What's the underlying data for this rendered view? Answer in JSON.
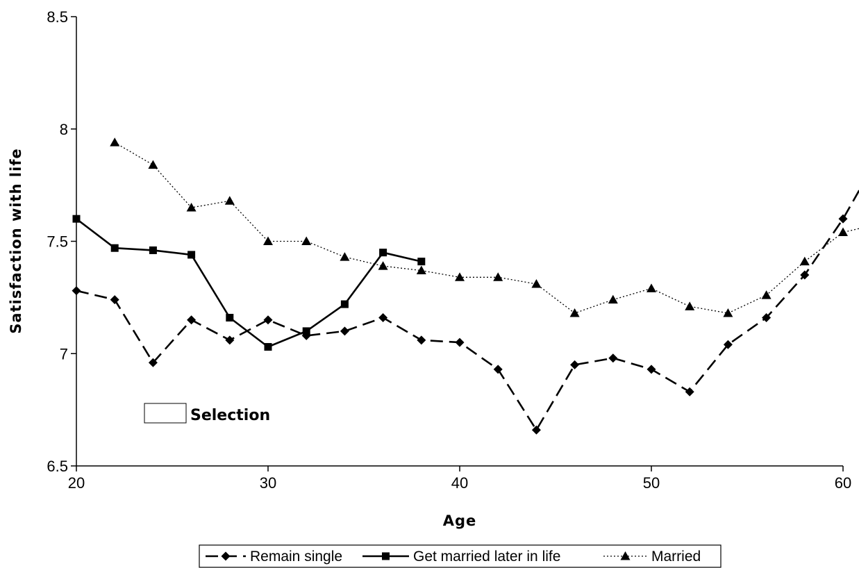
{
  "chart_data": {
    "type": "line",
    "title": "",
    "xlabel": "Age",
    "ylabel": "Satisfaction with life",
    "xlim": [
      20,
      60
    ],
    "ylim": [
      6.5,
      8.5
    ],
    "x_ticks": [
      "20",
      "30",
      "40",
      "50",
      "60"
    ],
    "y_ticks": [
      "6.5",
      "7",
      "7.5",
      "8",
      "8.5"
    ],
    "grid": false,
    "legend_position": "bottom",
    "annotation": "Selection",
    "series": [
      {
        "name": "Remain single",
        "marker": "diamond",
        "line_style": "dashed",
        "points": [
          [
            20,
            7.28
          ],
          [
            22,
            7.24
          ],
          [
            24,
            6.96
          ],
          [
            26,
            7.15
          ],
          [
            28,
            7.06
          ],
          [
            30,
            7.15
          ],
          [
            32,
            7.08
          ],
          [
            34,
            7.1
          ],
          [
            36,
            7.16
          ],
          [
            38,
            7.06
          ],
          [
            40,
            7.05
          ],
          [
            42,
            6.93
          ],
          [
            44,
            6.66
          ],
          [
            46,
            6.95
          ],
          [
            48,
            6.98
          ],
          [
            50,
            6.93
          ],
          [
            52,
            6.83
          ],
          [
            54,
            7.04
          ],
          [
            56,
            7.16
          ],
          [
            58,
            7.35
          ],
          [
            60,
            7.6
          ],
          [
            61,
            7.75
          ]
        ]
      },
      {
        "name": "Get married later in life",
        "marker": "square",
        "line_style": "solid",
        "points": [
          [
            20,
            7.6
          ],
          [
            22,
            7.47
          ],
          [
            24,
            7.46
          ],
          [
            26,
            7.44
          ],
          [
            28,
            7.16
          ],
          [
            30,
            7.03
          ],
          [
            32,
            7.1
          ],
          [
            34,
            7.22
          ],
          [
            36,
            7.45
          ],
          [
            38,
            7.41
          ]
        ]
      },
      {
        "name": "Married",
        "marker": "triangle",
        "line_style": "dotted",
        "points": [
          [
            22,
            7.94
          ],
          [
            24,
            7.84
          ],
          [
            26,
            7.65
          ],
          [
            28,
            7.68
          ],
          [
            30,
            7.5
          ],
          [
            32,
            7.5
          ],
          [
            34,
            7.43
          ],
          [
            36,
            7.39
          ],
          [
            38,
            7.37
          ],
          [
            40,
            7.34
          ],
          [
            42,
            7.34
          ],
          [
            44,
            7.31
          ],
          [
            46,
            7.18
          ],
          [
            48,
            7.24
          ],
          [
            50,
            7.29
          ],
          [
            52,
            7.21
          ],
          [
            54,
            7.18
          ],
          [
            56,
            7.26
          ],
          [
            58,
            7.41
          ],
          [
            60,
            7.54
          ],
          [
            61,
            7.56
          ]
        ]
      }
    ]
  }
}
